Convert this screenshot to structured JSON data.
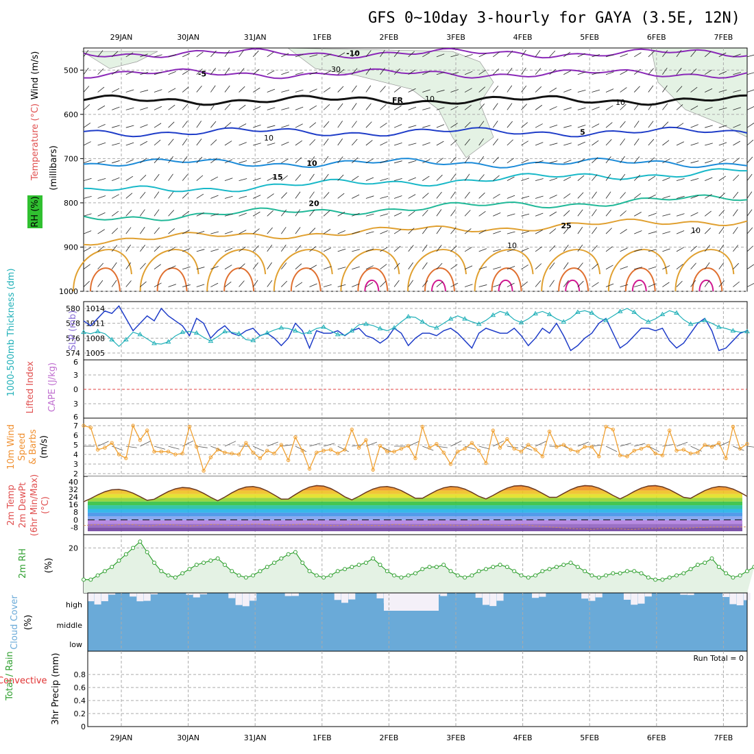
{
  "title": "GFS 0~10day 3-hourly for GAYA (3.5E, 12N)",
  "dates": [
    "29JAN",
    "30JAN",
    "31JAN",
    "1FEB",
    "2FEB",
    "3FEB",
    "4FEB",
    "5FEB",
    "6FEB",
    "7FEB"
  ],
  "colors": {
    "line_blue": "#1e3cc8",
    "line_cyan": "#20b0b8",
    "orange": "#f0a030",
    "green": "#30a030",
    "cloud": "#6aaad8",
    "rh_fill": "#e4f2e4"
  },
  "chart_data": [
    {
      "type": "line",
      "panel": "upper_air",
      "ylabel_parts": [
        "RH (%)",
        "Temperature (°C)",
        "Wind (m/s)",
        "(millibars)"
      ],
      "ylim": [
        1000,
        450
      ],
      "yticks": [
        500,
        600,
        700,
        800,
        900,
        1000
      ],
      "isotherms": [
        {
          "label": "-10",
          "p": 462
        },
        {
          "label": "-5",
          "p": 508
        },
        {
          "label": "FR",
          "p": 568
        },
        {
          "label": "5",
          "p": 640
        },
        {
          "label": "10",
          "p": 710
        },
        {
          "label": "15",
          "p": 775
        },
        {
          "label": "20",
          "p": 835
        },
        {
          "label": "25",
          "p": 885
        }
      ],
      "rh_contour_labels": [
        "30",
        "10",
        "10",
        "10",
        "10",
        "10"
      ]
    },
    {
      "type": "line",
      "panel": "thickness_slp",
      "ylabel_left": "1000-500mb Thickness (dm)",
      "ylabel_right": "SLP (mb)",
      "yticks_left": [
        574,
        576,
        578,
        580
      ],
      "yticks_right": [
        1005,
        1008,
        1011,
        1014
      ],
      "slp": [
        1011.5,
        1010.5,
        1012,
        1013.5,
        1013,
        1014.5,
        1012,
        1009.5,
        1011,
        1012.5,
        1011.5,
        1014,
        1012.5,
        1011.5,
        1010.5,
        1008.5,
        1012,
        1011,
        1008,
        1009.5,
        1010.5,
        1009,
        1008.5,
        1009.5,
        1010,
        1008.5,
        1009,
        1008,
        1006.5,
        1008,
        1011,
        1009.5,
        1006,
        1009.5,
        1009,
        1009,
        1009.5,
        1008.5,
        1009.5,
        1010,
        1008.5,
        1008,
        1007,
        1008,
        1010,
        1009,
        1006.5,
        1008,
        1009,
        1009,
        1008.5,
        1009.5,
        1010,
        1009,
        1007.5,
        1006,
        1009,
        1010,
        1009.5,
        1009,
        1009,
        1010,
        1008.5,
        1006.5,
        1008,
        1010,
        1009,
        1011,
        1008.5,
        1005.5,
        1006.5,
        1008,
        1009,
        1011,
        1012,
        1009,
        1006,
        1007,
        1008.5,
        1010,
        1010,
        1009.5,
        1010,
        1007.5,
        1006,
        1007,
        1009,
        1011,
        1012,
        1009.5,
        1005.5,
        1006,
        1007.5,
        1009,
        1009.5
      ],
      "thickness": [
        576.8,
        576.6,
        576.9,
        576.6,
        575.8,
        574.9,
        575.8,
        576.8,
        576.5,
        575.9,
        575.3,
        575.2,
        575.5,
        576.3,
        576.8,
        576.9,
        576.7,
        576.1,
        575.6,
        576.2,
        576.9,
        576.8,
        576.6,
        575.8,
        575.7,
        576.3,
        576.7,
        577.1,
        577.4,
        577.3,
        577.0,
        576.6,
        576.8,
        577.3,
        577.5,
        577.0,
        576.5,
        576.4,
        577.0,
        577.8,
        577.9,
        577.7,
        577.3,
        577.0,
        577.4,
        578.2,
        578.9,
        578.8,
        578.2,
        577.6,
        577.4,
        578.0,
        578.6,
        579.0,
        578.6,
        578.2,
        577.9,
        578.4,
        579.1,
        579.6,
        579.3,
        578.5,
        578.1,
        578.6,
        579.3,
        579.6,
        579.2,
        578.6,
        578.2,
        578.7,
        579.5,
        579.7,
        579.4,
        578.7,
        578.4,
        579.0,
        579.6,
        580.0,
        579.5,
        578.7,
        578.2,
        578.6,
        579.2,
        579.7,
        579.4,
        578.5,
        577.9,
        578.1,
        578.4,
        578.0,
        577.5,
        577.3,
        577.0,
        576.8,
        576.9
      ]
    },
    {
      "type": "line",
      "panel": "stability",
      "ylabel_left": "Lifted Index",
      "ylabel_right": "CAPE (J/kg)",
      "yticks": [
        "6",
        "3",
        "0",
        "3",
        "6"
      ]
    },
    {
      "type": "line",
      "panel": "wind10m",
      "ylabel": [
        "10m Wind",
        "Speed",
        "& Barbs",
        "(m/s)"
      ],
      "ylim": [
        2,
        7.5
      ],
      "yticks": [
        2,
        3,
        4,
        5,
        6,
        7
      ],
      "values": [
        7,
        6.8,
        4.5,
        4.7,
        5.2,
        4,
        3.6,
        7,
        5.5,
        6.5,
        4.3,
        4.3,
        4.3,
        4,
        4.1,
        6.9,
        4.8,
        2.3,
        3.7,
        4.5,
        4.2,
        4.1,
        4,
        5.2,
        4.2,
        3.6,
        4.4,
        4.1,
        5,
        3.4,
        5.8,
        4.4,
        2.5,
        4.2,
        4.4,
        4.5,
        4.1,
        4.5,
        6.6,
        4.7,
        5.5,
        2.4,
        4.9,
        4.3,
        4.3,
        4.6,
        4.9,
        3.6,
        6.9,
        4.7,
        5.1,
        4.2,
        3,
        4.3,
        4.6,
        5.2,
        4.4,
        3.1,
        6.5,
        4.7,
        5.6,
        4.6,
        4.3,
        5,
        4.5,
        3.8,
        6.4,
        4.8,
        5,
        4.5,
        4.3,
        4.8,
        4.8,
        3.8,
        6.9,
        6.6,
        3.9,
        3.8,
        4.4,
        4.6,
        4.9,
        4.1,
        3.9,
        6.5,
        4.4,
        4.5,
        4.1,
        4.2,
        5,
        4.8,
        5.2,
        3.6,
        6.9,
        4.6,
        5.1
      ]
    },
    {
      "type": "area",
      "panel": "temp2m",
      "ylabel": [
        "2m Temp",
        "2m DewPt",
        "(6hr Min/Max)",
        "(°C)"
      ],
      "yticks": [
        40,
        32,
        24,
        16,
        8,
        0,
        -8
      ],
      "daily_max": [
        32,
        34,
        35,
        36,
        35,
        35,
        36,
        36,
        36,
        35
      ],
      "daily_min": [
        19,
        20,
        20,
        20,
        21,
        21,
        22,
        22,
        22,
        21
      ],
      "dewpoint": [
        -6,
        -5.5,
        -5,
        -5.5,
        -6,
        -5,
        -4.5,
        -5,
        -6,
        -6.5,
        -6,
        -5,
        -5,
        -5.5,
        -6,
        -6.5,
        -6,
        -5.5,
        -5,
        -5,
        -5.5,
        -6,
        -6,
        -5,
        -4.5,
        -4.5,
        -5,
        -5.5,
        -6,
        -5.5,
        -5,
        -4.5,
        -4.5,
        -5,
        -5.5,
        -6,
        -6,
        -5.5,
        -5,
        -5,
        -5.5,
        -6,
        -6,
        -5.5,
        -5,
        -5,
        -5.5,
        -6,
        -6,
        -5.5,
        -5,
        -5,
        -5.5,
        -6,
        -6,
        -5.5,
        -5,
        -5,
        -5.5,
        -6,
        -6,
        -5.5,
        -5,
        -5.5,
        -6.5,
        -7,
        -7.5,
        -8,
        -8.5,
        -9,
        -9.5,
        -9.5,
        -10,
        -9.5,
        -9,
        -9,
        -9.5,
        -10,
        -10,
        -9.5,
        -9,
        -9,
        -8.5,
        -8.5,
        -9,
        -9,
        -8.5,
        -8,
        -8,
        -7.5,
        -7.5,
        -7.5,
        -7.5,
        -7.5,
        -7.5
      ]
    },
    {
      "type": "area",
      "panel": "rh2m",
      "ylabel": [
        "2m RH",
        "(%)"
      ],
      "yticks": [
        20
      ],
      "values": [
        5,
        5,
        7,
        9,
        11,
        14,
        17,
        20,
        23,
        18,
        13,
        9,
        7,
        6,
        8,
        10,
        12,
        13,
        14,
        15,
        12,
        9,
        7,
        6,
        7,
        9,
        11,
        13,
        15,
        17,
        18,
        13,
        9,
        7,
        6,
        7,
        9,
        10,
        11,
        12,
        13,
        15,
        12,
        9,
        7,
        6,
        7,
        8,
        10,
        11,
        11,
        12,
        9,
        7,
        6,
        7,
        9,
        10,
        11,
        12,
        11,
        9,
        7,
        6,
        7,
        9,
        10,
        11,
        12,
        13,
        11,
        9,
        7,
        6,
        7,
        8,
        8,
        9,
        9,
        8,
        6,
        5,
        5,
        6,
        7,
        8,
        10,
        12,
        13,
        15,
        11,
        8,
        6,
        7,
        9,
        11
      ]
    },
    {
      "type": "heatmap",
      "panel": "cloud",
      "ylabel": [
        "Cloud Cover",
        "(%)"
      ],
      "levels": [
        "high",
        "middle",
        "low"
      ]
    },
    {
      "type": "bar",
      "panel": "precip",
      "ylabel": [
        "3hr Precip (mm)",
        "Total / Rain",
        "Convective"
      ],
      "ylim": [
        0,
        1
      ],
      "yticks": [
        "0",
        "0.2",
        "0.4",
        "0.6",
        "0.8"
      ],
      "run_total": "Run Total = 0",
      "values": []
    }
  ]
}
